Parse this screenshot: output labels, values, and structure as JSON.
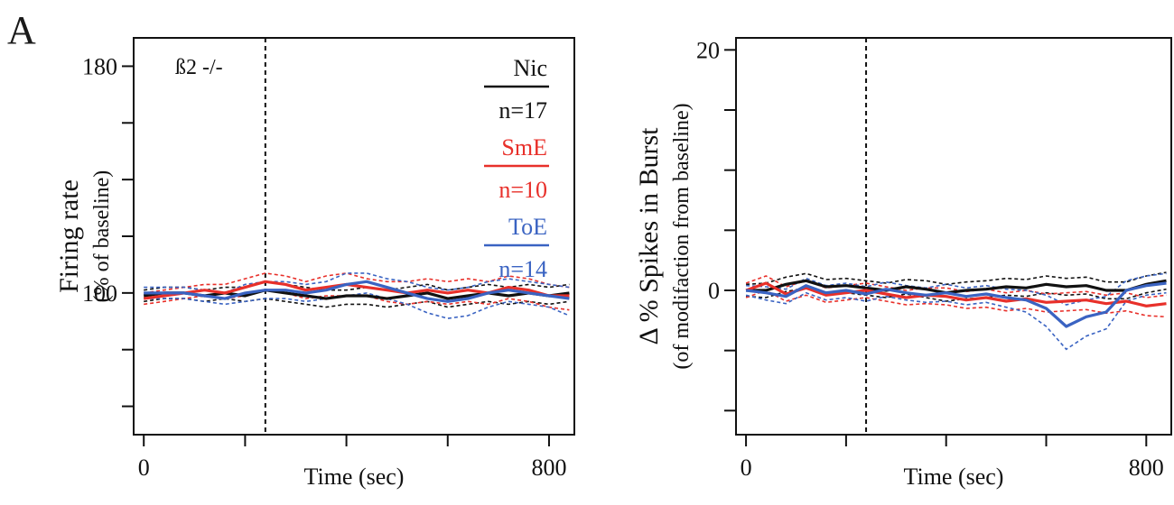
{
  "figure": {
    "panel_label": "A"
  },
  "colors": {
    "nic": "#111111",
    "sme": "#e8302a",
    "toe": "#3a63c2"
  },
  "chart_data": [
    {
      "type": "line",
      "title": "",
      "annotation": "ß2 -/-",
      "xlabel": "Time (sec)",
      "ylabel": "Firing rate",
      "ylabel_sub": "(% of baseline)",
      "xlim": [
        -20,
        850
      ],
      "ylim": [
        50,
        190
      ],
      "xticks": [
        0,
        200,
        400,
        600,
        800
      ],
      "xtick_labels": [
        "0",
        "",
        "",
        "",
        "800"
      ],
      "yticks": [
        60,
        80,
        100,
        120,
        140,
        160,
        180
      ],
      "ytick_labels": [
        "",
        "",
        "100",
        "",
        "",
        "",
        "180"
      ],
      "vline": 240,
      "legend": [
        {
          "name": "Nic",
          "n": "n=17",
          "color": "#111111"
        },
        {
          "name": "SmE",
          "n": "n=10",
          "color": "#e8302a"
        },
        {
          "name": "ToE",
          "n": "n=14",
          "color": "#3a63c2"
        }
      ],
      "x": [
        0,
        40,
        80,
        120,
        160,
        200,
        240,
        280,
        320,
        360,
        400,
        440,
        480,
        520,
        560,
        600,
        640,
        680,
        720,
        760,
        800,
        840
      ],
      "series": [
        {
          "name": "Nic",
          "color": "#111111",
          "mean": [
            99,
            100,
            100,
            99,
            100,
            99,
            101,
            100,
            99,
            98,
            99,
            99,
            98,
            99,
            100,
            98,
            99,
            100,
            99,
            100,
            99,
            100
          ],
          "upper": [
            101,
            102,
            102,
            101,
            102,
            102,
            104,
            103,
            102,
            101,
            101,
            102,
            101,
            102,
            103,
            101,
            102,
            103,
            102,
            103,
            102,
            103
          ],
          "lower": [
            97,
            98,
            98,
            97,
            98,
            97,
            98,
            97,
            96,
            95,
            96,
            96,
            95,
            96,
            97,
            95,
            96,
            97,
            96,
            97,
            96,
            97
          ]
        },
        {
          "name": "SmE",
          "color": "#e8302a",
          "mean": [
            98,
            99,
            100,
            101,
            100,
            102,
            104,
            103,
            101,
            102,
            103,
            102,
            101,
            100,
            101,
            100,
            101,
            100,
            102,
            101,
            99,
            99
          ],
          "upper": [
            100,
            101,
            102,
            103,
            103,
            105,
            107,
            106,
            104,
            106,
            107,
            105,
            104,
            104,
            105,
            104,
            105,
            104,
            106,
            105,
            103,
            102
          ],
          "lower": [
            96,
            97,
            98,
            99,
            98,
            99,
            101,
            100,
            98,
            99,
            99,
            99,
            97,
            96,
            97,
            96,
            97,
            96,
            98,
            97,
            95,
            94
          ]
        },
        {
          "name": "ToE",
          "color": "#3a63c2",
          "mean": [
            100,
            100,
            100,
            99,
            98,
            100,
            101,
            101,
            100,
            101,
            103,
            104,
            102,
            100,
            98,
            97,
            98,
            100,
            101,
            100,
            99,
            98
          ],
          "upper": [
            102,
            102,
            102,
            101,
            100,
            103,
            104,
            104,
            103,
            104,
            107,
            107,
            105,
            104,
            102,
            101,
            102,
            104,
            105,
            104,
            103,
            102
          ],
          "lower": [
            98,
            98,
            98,
            97,
            96,
            97,
            98,
            98,
            97,
            98,
            99,
            100,
            98,
            96,
            93,
            91,
            92,
            95,
            97,
            96,
            95,
            92
          ]
        }
      ]
    },
    {
      "type": "line",
      "title": "",
      "xlabel": "Time (sec)",
      "ylabel": "Δ % Spikes in Burst",
      "ylabel_sub": "(of modifaction from baseline)",
      "xlim": [
        -20,
        850
      ],
      "ylim": [
        -12,
        21
      ],
      "xticks": [
        0,
        200,
        400,
        600,
        800
      ],
      "xtick_labels": [
        "0",
        "",
        "",
        "",
        "800"
      ],
      "yticks": [
        -10,
        -5,
        0,
        5,
        10,
        15,
        20
      ],
      "ytick_labels": [
        "",
        "",
        "0",
        "",
        "",
        "",
        "20"
      ],
      "vline": 240,
      "x": [
        0,
        40,
        80,
        120,
        160,
        200,
        240,
        280,
        320,
        360,
        400,
        440,
        480,
        520,
        560,
        600,
        640,
        680,
        720,
        760,
        800,
        840
      ],
      "series": [
        {
          "name": "Nic",
          "color": "#111111",
          "mean": [
            0,
            0,
            0.5,
            0.8,
            0.3,
            0.4,
            0.2,
            0,
            0.3,
            0.1,
            -0.2,
            0,
            0.1,
            0.3,
            0.2,
            0.5,
            0.3,
            0.4,
            0,
            0,
            0.5,
            0.8
          ],
          "upper": [
            0.5,
            0.6,
            1.1,
            1.4,
            0.9,
            1,
            0.8,
            0.6,
            0.9,
            0.8,
            0.5,
            0.7,
            0.8,
            1,
            0.9,
            1.2,
            1,
            1.1,
            0.7,
            0.7,
            1.2,
            1.5
          ],
          "lower": [
            -0.5,
            -0.6,
            -0.1,
            0.2,
            -0.3,
            -0.2,
            -0.4,
            -0.6,
            -0.3,
            -0.6,
            -0.9,
            -0.7,
            -0.6,
            -0.4,
            -0.5,
            -0.2,
            -0.4,
            -0.3,
            -0.7,
            -0.7,
            -0.2,
            0.1
          ]
        },
        {
          "name": "SmE",
          "color": "#e8302a",
          "mean": [
            0,
            0.6,
            -0.3,
            0.2,
            -0.4,
            -0.2,
            0,
            -0.3,
            -0.6,
            -0.4,
            -0.5,
            -0.8,
            -0.6,
            -0.9,
            -0.7,
            -1,
            -0.9,
            -0.8,
            -1.1,
            -0.9,
            -1.3,
            -1.1
          ],
          "upper": [
            0.6,
            1.2,
            0.3,
            0.8,
            0.2,
            0.4,
            0.6,
            0.3,
            0,
            0.2,
            0.2,
            -0.1,
            0.1,
            -0.2,
            0,
            -0.3,
            -0.2,
            -0.1,
            -0.4,
            -0.2,
            -0.6,
            -0.4
          ],
          "lower": [
            -0.6,
            0,
            -0.9,
            -0.4,
            -1,
            -0.8,
            -0.6,
            -0.9,
            -1.2,
            -1.1,
            -1.2,
            -1.5,
            -1.4,
            -1.7,
            -1.5,
            -1.8,
            -1.7,
            -1.6,
            -1.9,
            -1.7,
            -2.1,
            -2.2
          ]
        },
        {
          "name": "ToE",
          "color": "#3a63c2",
          "mean": [
            0,
            -0.2,
            -0.5,
            0.4,
            -0.2,
            0,
            -0.3,
            0.1,
            -0.2,
            -0.4,
            -0.2,
            -0.5,
            -0.3,
            -0.6,
            -0.8,
            -1.5,
            -3,
            -2.2,
            -1.8,
            0,
            0.4,
            0.6
          ],
          "upper": [
            0.4,
            0.3,
            0.1,
            1,
            0.4,
            0.6,
            0.3,
            0.7,
            0.4,
            0.2,
            0.5,
            0.2,
            0.4,
            0.1,
            0,
            -0.4,
            -1.2,
            -0.8,
            -0.5,
            0.8,
            1.2,
            1.4
          ],
          "lower": [
            -0.4,
            -0.8,
            -1.1,
            -0.2,
            -0.8,
            -0.6,
            -0.9,
            -0.5,
            -0.8,
            -1,
            -0.9,
            -1.2,
            -1,
            -1.4,
            -1.8,
            -3,
            -4.9,
            -3.8,
            -3.2,
            -0.9,
            -0.4,
            -0.2
          ]
        }
      ]
    }
  ]
}
